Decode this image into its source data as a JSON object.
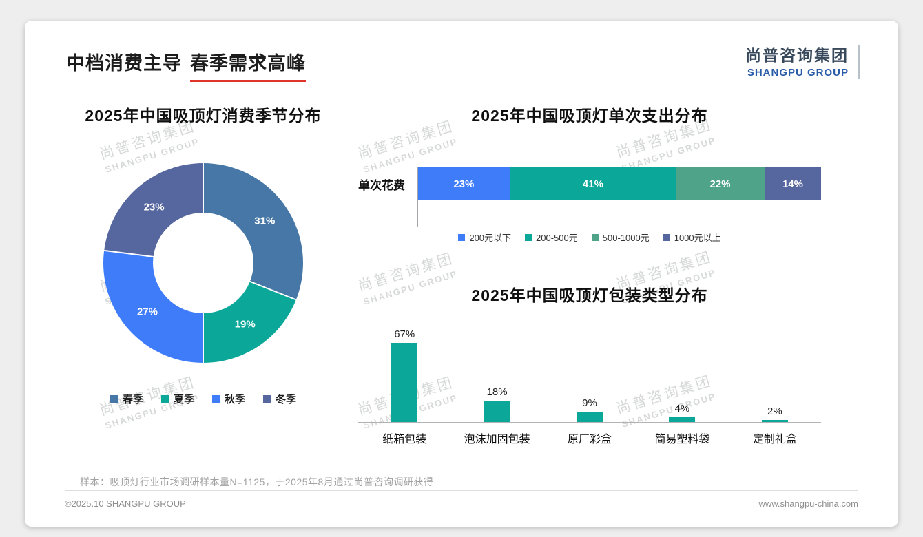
{
  "page": {
    "title_part1": "中档消费主导",
    "title_part2": "春季需求高峰",
    "logo_cn": "尚普咨询集团",
    "logo_en": "SHANGPU GROUP",
    "watermark_cn": "尚普咨询集团",
    "watermark_en": "SHANGPU GROUP",
    "note": "样本：吸顶灯行业市场调研样本量N=1125，于2025年8月通过尚普咨询调研获得",
    "footer_left": "©2025.10 SHANGPU GROUP",
    "footer_right": "www.shangpu-china.com"
  },
  "colors": {
    "accent_red": "#df352b",
    "logo_blue": "#2b5ca8",
    "bar_teal": "#0ba89a"
  },
  "chart_data": [
    {
      "type": "pie",
      "donut": true,
      "title": "2025年中国吸顶灯消费季节分布",
      "labels": [
        "春季",
        "夏季",
        "秋季",
        "冬季"
      ],
      "values": [
        31,
        19,
        27,
        23
      ],
      "value_labels": [
        "31%",
        "19%",
        "27%",
        "23%"
      ],
      "colors": [
        "#4677a6",
        "#0ba89a",
        "#3e7cfa",
        "#56669f"
      ],
      "legend_position": "bottom"
    },
    {
      "type": "bar",
      "variant": "horizontal-stacked",
      "title": "2025年中国吸顶灯单次支出分布",
      "row_label": "单次花费",
      "series": [
        {
          "name": "200元以下",
          "value": 23,
          "color": "#3e7cfa"
        },
        {
          "name": "200-500元",
          "value": 41,
          "color": "#0ba89a"
        },
        {
          "name": "500-1000元",
          "value": 22,
          "color": "#4ea389"
        },
        {
          "name": "1000元以上",
          "value": 14,
          "color": "#56669f"
        }
      ],
      "xlim": [
        0,
        100
      ],
      "legend_position": "bottom"
    },
    {
      "type": "bar",
      "title": "2025年中国吸顶灯包装类型分布",
      "categories": [
        "纸箱包装",
        "泡沫加固包装",
        "原厂彩盒",
        "简易塑料袋",
        "定制礼盒"
      ],
      "values": [
        67,
        18,
        9,
        4,
        2
      ],
      "value_labels": [
        "67%",
        "18%",
        "9%",
        "4%",
        "2%"
      ],
      "bar_color": "#0ba89a",
      "ylim": [
        0,
        70
      ]
    }
  ]
}
